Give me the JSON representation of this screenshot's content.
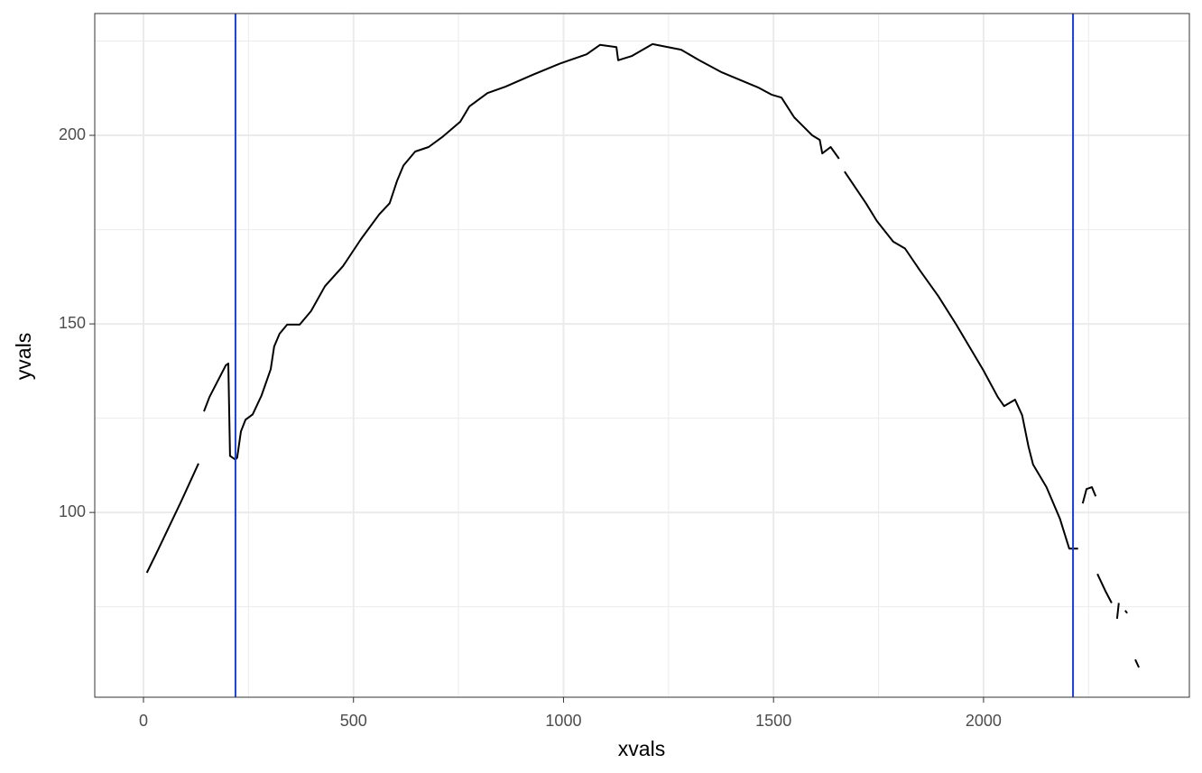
{
  "chart_data": {
    "type": "line",
    "x_label": "xvals",
    "y_label": "yvals",
    "xlim": [
      -116,
      2490
    ],
    "ylim": [
      51,
      232.3
    ],
    "xticks": [
      0,
      500,
      1000,
      1500,
      2000
    ],
    "yticks": [
      100,
      150,
      200
    ],
    "minor_xticks": [
      250,
      750,
      1250,
      1750,
      2250
    ],
    "minor_yticks": [
      75,
      125,
      175,
      225
    ],
    "grid": true,
    "vlines": [
      219,
      2213
    ],
    "vline_color": "#1a3fd6",
    "series": [
      {
        "name": "yvals",
        "color": "#000000",
        "x": [
          8,
          30,
          60,
          90,
          131,
          138,
          144,
          157,
          196,
          202,
          206,
          219,
          223,
          232,
          243,
          260,
          281,
          303,
          311,
          324,
          342,
          359,
          372,
          399,
          432,
          475,
          518,
          561,
          586,
          604,
          619,
          647,
          679,
          711,
          754,
          776,
          819,
          862,
          926,
          991,
          1055,
          1087,
          1126,
          1130,
          1162,
          1212,
          1280,
          1323,
          1377,
          1463,
          1495,
          1519,
          1549,
          1592,
          1610,
          1616,
          1636,
          1656,
          1662,
          1669,
          1720,
          1746,
          1785,
          1813,
          1849,
          1892,
          1935,
          1967,
          1999,
          2034,
          2049,
          2075,
          2092,
          2107,
          2118,
          2150,
          2182,
          2204,
          2225,
          2230,
          2236,
          2245,
          2258,
          2267,
          2269,
          2271,
          2290,
          2305,
          2311,
          2318,
          2322,
          2330,
          2337,
          2342,
          2352,
          2361,
          2370
        ],
        "values": [
          84,
          89,
          96,
          103,
          113,
          null,
          126.8,
          130.6,
          139,
          139.5,
          115,
          114,
          114.5,
          121.5,
          124.6,
          126,
          131,
          138,
          144,
          147.4,
          149.8,
          149.8,
          149.8,
          153.4,
          160,
          165.3,
          172.5,
          179,
          182,
          188,
          192,
          195.7,
          196.9,
          199.5,
          203.6,
          207.7,
          211.2,
          212.9,
          216,
          219,
          221.5,
          224,
          223.4,
          219.9,
          221,
          224.2,
          222.7,
          219.9,
          216.7,
          212.7,
          210.8,
          210,
          204.8,
          200,
          198.8,
          195.2,
          196.9,
          193.8,
          null,
          190.4,
          182,
          177.3,
          171.8,
          170,
          164.1,
          157.4,
          149.8,
          143.8,
          137.8,
          130.6,
          128.2,
          129.9,
          125.8,
          117.5,
          112.7,
          106.7,
          98.3,
          90.4,
          90.4,
          null,
          102.4,
          106.2,
          106.7,
          104.3,
          null,
          83.7,
          79.2,
          76,
          null,
          71.8,
          76,
          null,
          74,
          73.3,
          null,
          61,
          58.9
        ]
      }
    ]
  }
}
